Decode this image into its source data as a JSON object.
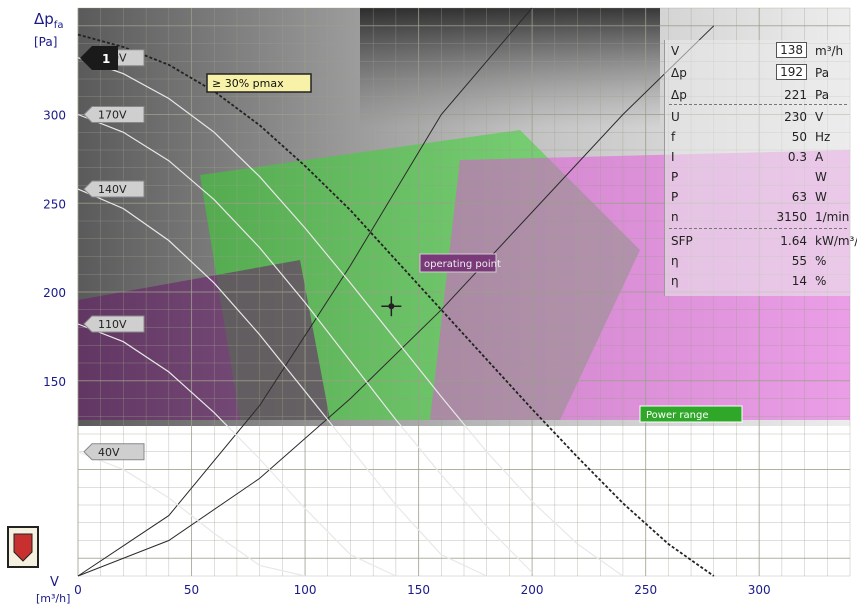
{
  "chart_data": {
    "type": "line",
    "title": "",
    "ylabel": "Δp",
    "ylabel_subscript": "fa",
    "yunit": "[Pa]",
    "xlabel": "V",
    "xunit": "[m³/h]",
    "xlim": [
      0,
      340
    ],
    "ylim": [
      40,
      360
    ],
    "x_ticks": [
      0,
      50,
      100,
      150,
      200,
      250,
      300
    ],
    "y_ticks": [
      150,
      200,
      250,
      300
    ],
    "x_tick_labels": [
      "0",
      "50",
      "100",
      "150",
      "200",
      "250",
      "300"
    ],
    "y_tick_labels": [
      "150",
      "200",
      "250",
      "300"
    ],
    "grid": true,
    "series": [
      {
        "name": "230V",
        "x": [
          0,
          20,
          40,
          60,
          80,
          100,
          120,
          140,
          160,
          180,
          200,
          220,
          240,
          260,
          280
        ],
        "y": [
          345,
          338,
          328,
          313,
          294,
          271,
          246,
          218,
          190,
          162,
          134,
          107,
          81,
          58,
          40
        ]
      },
      {
        "name": "200V",
        "x": [
          0,
          20,
          40,
          60,
          80,
          100,
          120,
          140,
          160,
          180,
          200,
          220,
          240
        ],
        "y": [
          332,
          323,
          309,
          290,
          265,
          236,
          205,
          173,
          141,
          110,
          82,
          58,
          40
        ]
      },
      {
        "name": "170V",
        "x": [
          0,
          20,
          40,
          60,
          80,
          100,
          120,
          140,
          160,
          180,
          200
        ],
        "y": [
          300,
          290,
          274,
          252,
          225,
          194,
          161,
          128,
          97,
          68,
          42
        ]
      },
      {
        "name": "140V",
        "x": [
          0,
          20,
          40,
          60,
          80,
          100,
          120,
          140,
          160,
          180
        ],
        "y": [
          258,
          247,
          229,
          205,
          176,
          144,
          112,
          80,
          52,
          40
        ]
      },
      {
        "name": "110V",
        "x": [
          0,
          20,
          40,
          60,
          80,
          100,
          120,
          140
        ],
        "y": [
          182,
          172,
          155,
          132,
          106,
          78,
          52,
          40
        ]
      },
      {
        "name": "40V",
        "x": [
          0,
          20,
          40,
          60,
          80,
          100
        ],
        "y": [
          110,
          100,
          84,
          64,
          46,
          40
        ]
      }
    ],
    "system_curves": [
      {
        "x": [
          0,
          40,
          80,
          120,
          160,
          200,
          240,
          280
        ],
        "y": [
          40,
          60,
          95,
          140,
          190,
          245,
          300,
          350
        ]
      },
      {
        "x": [
          0,
          40,
          80,
          120,
          160,
          200
        ],
        "y": [
          40,
          74,
          136,
          215,
          300,
          360
        ]
      }
    ],
    "operating_point": {
      "x": 138,
      "y": 192
    },
    "annotations": [
      "1",
      "230V",
      "200V",
      "170V",
      "140V",
      "110V",
      "40V",
      "≥ 30% pmax",
      "operating point",
      "Power range"
    ],
    "legend_placement": "top-right"
  },
  "info_panel": {
    "rows": [
      {
        "key": "V",
        "value": "138",
        "unit": "m³/h",
        "boxed": true
      },
      {
        "key": "Δp",
        "value": "192",
        "unit": "Pa",
        "boxed": true
      },
      {
        "key": "Δp",
        "value": "221",
        "unit": "Pa",
        "boxed": false
      },
      {
        "key": "U",
        "value": "230",
        "unit": "V",
        "boxed": false
      },
      {
        "key": "f",
        "value": "50",
        "unit": "Hz",
        "boxed": false
      },
      {
        "key": "I",
        "value": "0.3",
        "unit": "A",
        "boxed": false
      },
      {
        "key": "P",
        "value": "",
        "unit": "W",
        "boxed": false
      },
      {
        "key": "P",
        "value": "63",
        "unit": "W",
        "boxed": false
      },
      {
        "key": "n",
        "value": "3150",
        "unit": "1/min",
        "boxed": false
      },
      {
        "key": "SFP",
        "value": "1.64",
        "unit": "kW/m³/s",
        "boxed": false
      },
      {
        "key": "η",
        "value": "55",
        "unit": "%",
        "boxed": false
      },
      {
        "key": "η",
        "value": "14",
        "unit": "%",
        "boxed": false
      }
    ]
  },
  "colors": {
    "curve": "#333333",
    "grid": "#9aa08a",
    "green_band": "#39d62f",
    "magenta_band": "#e84fe0",
    "panel_bg": "#ebebeb"
  }
}
